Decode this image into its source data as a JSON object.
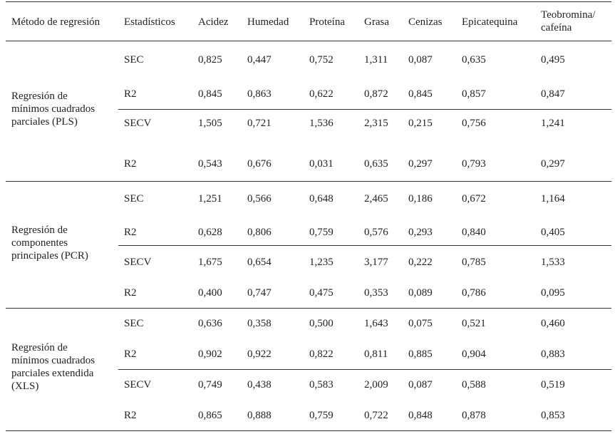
{
  "header": {
    "metodo": "Método de regresión",
    "estadisticos": "Estadísticos",
    "acidez": "Acidez",
    "humedad": "Humedad",
    "proteina": "Proteína",
    "grasa": "Grasa",
    "cenizas": "Cenizas",
    "epicatequina": "Epicatequina",
    "teobromina_line1": "Teobromina/",
    "teobromina_line2": "cafeína"
  },
  "groups": [
    {
      "method_lines": [
        "Regresión de",
        "mínimos cuadrados",
        "parciales (PLS)"
      ],
      "rows": [
        {
          "stat": "SEC",
          "values": [
            "0,825",
            "0,447",
            "0,752",
            "1,311",
            "0,087",
            "0,635",
            "0,495"
          ]
        },
        {
          "stat": "R2",
          "values": [
            "0,845",
            "0,863",
            "0,622",
            "0,872",
            "0,845",
            "0,857",
            "0,847"
          ]
        },
        {
          "stat": "SECV",
          "values": [
            "1,505",
            "0,721",
            "1,536",
            "2,315",
            "0,215",
            "0,756",
            "1,241"
          ]
        },
        {
          "stat": "R2",
          "values": [
            "0,543",
            "0,676",
            "0,031",
            "0,635",
            "0,297",
            "0,793",
            "0,297"
          ]
        }
      ]
    },
    {
      "method_lines": [
        "Regresión de",
        "componentes",
        "principales (PCR)"
      ],
      "rows": [
        {
          "stat": "SEC",
          "values": [
            "1,251",
            "0,566",
            "0,648",
            "2,465",
            "0,186",
            "0,672",
            "1,164"
          ]
        },
        {
          "stat": "R2",
          "values": [
            "0,628",
            "0,806",
            "0,759",
            "0,576",
            "0,293",
            "0,840",
            "0,405"
          ]
        },
        {
          "stat": "SECV",
          "values": [
            "1,675",
            "0,654",
            "1,235",
            "3,177",
            "0,222",
            "0,785",
            "1,533"
          ]
        },
        {
          "stat": "R2",
          "values": [
            "0,400",
            "0,747",
            "0,475",
            "0,353",
            "0,089",
            "0,786",
            "0,095"
          ]
        }
      ]
    },
    {
      "method_lines": [
        "Regresión de",
        "mínimos cuadrados",
        "parciales extendida",
        "(XLS)"
      ],
      "rows": [
        {
          "stat": "SEC",
          "values": [
            "0,636",
            "0,358",
            "0,500",
            "1,643",
            "0,075",
            "0,521",
            "0,460"
          ]
        },
        {
          "stat": "R2",
          "values": [
            "0,902",
            "0,922",
            "0,822",
            "0,811",
            "0,885",
            "0,904",
            "0,883"
          ]
        },
        {
          "stat": "SECV",
          "values": [
            "0,749",
            "0,438",
            "0,583",
            "2,009",
            "0,087",
            "0,588",
            "0,519"
          ]
        },
        {
          "stat": "R2",
          "values": [
            "0,865",
            "0,888",
            "0,759",
            "0,722",
            "0,848",
            "0,878",
            "0,853"
          ]
        }
      ]
    }
  ]
}
